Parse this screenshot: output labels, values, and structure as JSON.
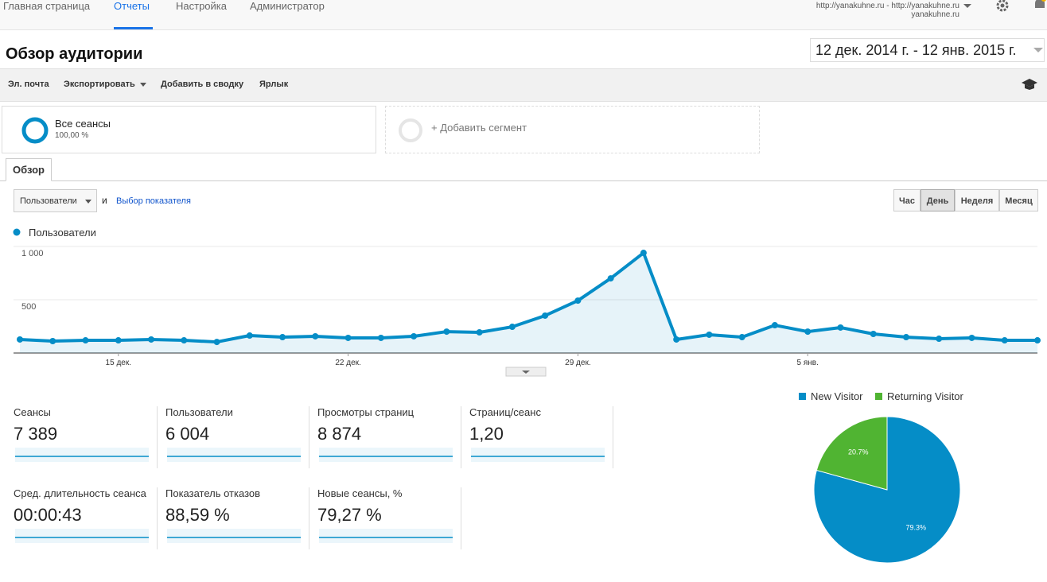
{
  "nav": {
    "items": [
      "Главная страница",
      "Отчеты",
      "Настройка",
      "Администратор"
    ],
    "active": 1,
    "account": "http://yanakuhne.ru - http://yanakuhne.ru",
    "account_sub": "yanakuhne.ru"
  },
  "header": {
    "title": "Обзор аудитории",
    "date_range": "12 дек. 2014 г. - 12 янв. 2015 г."
  },
  "toolbar": [
    "Эл. почта",
    "Экспортировать",
    "Добавить в сводку",
    "Ярлык"
  ],
  "segments": {
    "name": "Все сеансы",
    "share": "100,00 %",
    "add": "+ Добавить сегмент"
  },
  "tab": "Обзор",
  "controls": {
    "metric": "Пользователи",
    "and": "и",
    "choose": "Выбор показателя",
    "granularity": [
      "Час",
      "День",
      "Неделя",
      "Месяц"
    ],
    "granularity_active": 1
  },
  "metrics": [
    {
      "label": "Сеансы",
      "value": "7 389"
    },
    {
      "label": "Пользователи",
      "value": "6 004"
    },
    {
      "label": "Просмотры страниц",
      "value": "8 874"
    },
    {
      "label": "Страниц/сеанс",
      "value": "1,20"
    },
    {
      "label": "Сред. длительность сеанса",
      "value": "00:00:43"
    },
    {
      "label": "Показатель отказов",
      "value": "88,59 %"
    },
    {
      "label": "Новые сеансы, %",
      "value": "79,27 %"
    }
  ],
  "chart_data": [
    {
      "type": "line",
      "categories": [
        null,
        null,
        null,
        "15 дек.",
        null,
        null,
        null,
        null,
        null,
        null,
        "22 дек.",
        null,
        null,
        null,
        null,
        null,
        null,
        "29 дек.",
        null,
        null,
        null,
        null,
        null,
        null,
        "5 янв.",
        null,
        null,
        null,
        null,
        null,
        null,
        null
      ],
      "series": [
        {
          "name": "Пользователи",
          "color": "#058dc7",
          "values": [
            127,
            112,
            119,
            119,
            127,
            119,
            104,
            164,
            149,
            157,
            142,
            142,
            157,
            201,
            194,
            246,
            351,
            492,
            701,
            940,
            127,
            172,
            149,
            261,
            201,
            239,
            179,
            149,
            134,
            142,
            119,
            119
          ]
        }
      ],
      "ylim": [
        0,
        1000
      ],
      "yticks": [
        500,
        {
          "value": 1000,
          "label": "1 000"
        }
      ],
      "grid": true,
      "area": true
    },
    {
      "type": "pie",
      "categories": [
        "New Visitor",
        "Returning Visitor"
      ],
      "values": [
        79.3,
        20.7
      ],
      "value_labels": [
        "79.3%",
        "20.7%"
      ],
      "colors": [
        "#058dc7",
        "#50b432"
      ],
      "legend": "top"
    }
  ]
}
